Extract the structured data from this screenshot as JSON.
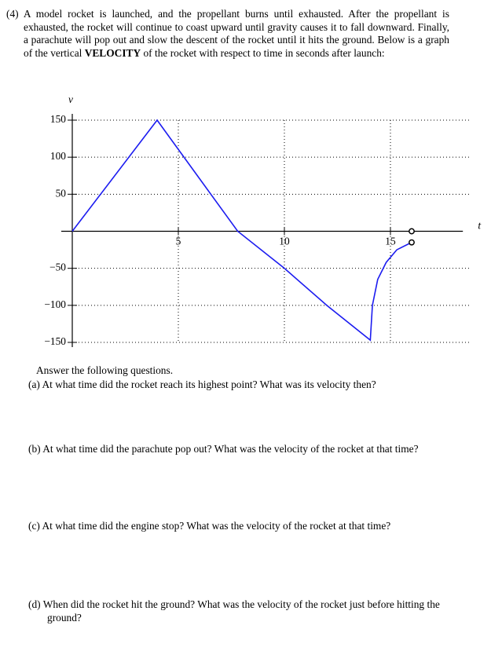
{
  "problem": {
    "intro": [
      "(4) A model rocket is launched, and the propellant burns until exhausted. After the propellant is exhausted, the rocket will continue to coast upward until gravity causes it to fall downward. Finally, a parachute will pop out and slow the descent of the rocket until it hits the ground. Below is a graph of the vertical ",
      "VELOCITY",
      " of the rocket with respect to time in seconds after launch:"
    ],
    "instructions": "Answer the following questions.",
    "questions": [
      {
        "label": "(a)",
        "text": "At what time did the rocket reach its highest point? What was its velocity then?"
      },
      {
        "label": "(b)",
        "text": "At what time did the parachute pop out? What was the velocity of the rocket at that time?"
      },
      {
        "label": "(c)",
        "text": "At what time did the engine stop? What was the velocity of the rocket at that time?"
      },
      {
        "label": "(d)",
        "text": "When did the rocket hit the ground? What was the velocity of the rocket just before hitting the ground?"
      }
    ]
  },
  "chart_data": {
    "type": "line",
    "x_label": "t",
    "y_label": "v",
    "x": [
      0,
      4,
      6,
      7.8,
      10,
      12,
      14.05,
      14.15,
      14.4,
      14.8,
      15.3,
      16
    ],
    "values": [
      0,
      150,
      71,
      0,
      -50,
      -100,
      -147,
      -100,
      -65,
      -42,
      -25,
      -15
    ],
    "color": "#1c1cf0",
    "open_points": {
      "x": [
        16,
        16
      ],
      "values": [
        0,
        -15
      ]
    },
    "xlim": [
      0,
      18.6
    ],
    "ylim": [
      -150,
      150
    ],
    "xticks": [
      5,
      10,
      15
    ],
    "yticks": [
      {
        "value": -150,
        "label": "−150"
      },
      {
        "value": -100,
        "label": "−100"
      },
      {
        "value": -50,
        "label": "−50"
      },
      50,
      100,
      150
    ],
    "grid": true
  }
}
